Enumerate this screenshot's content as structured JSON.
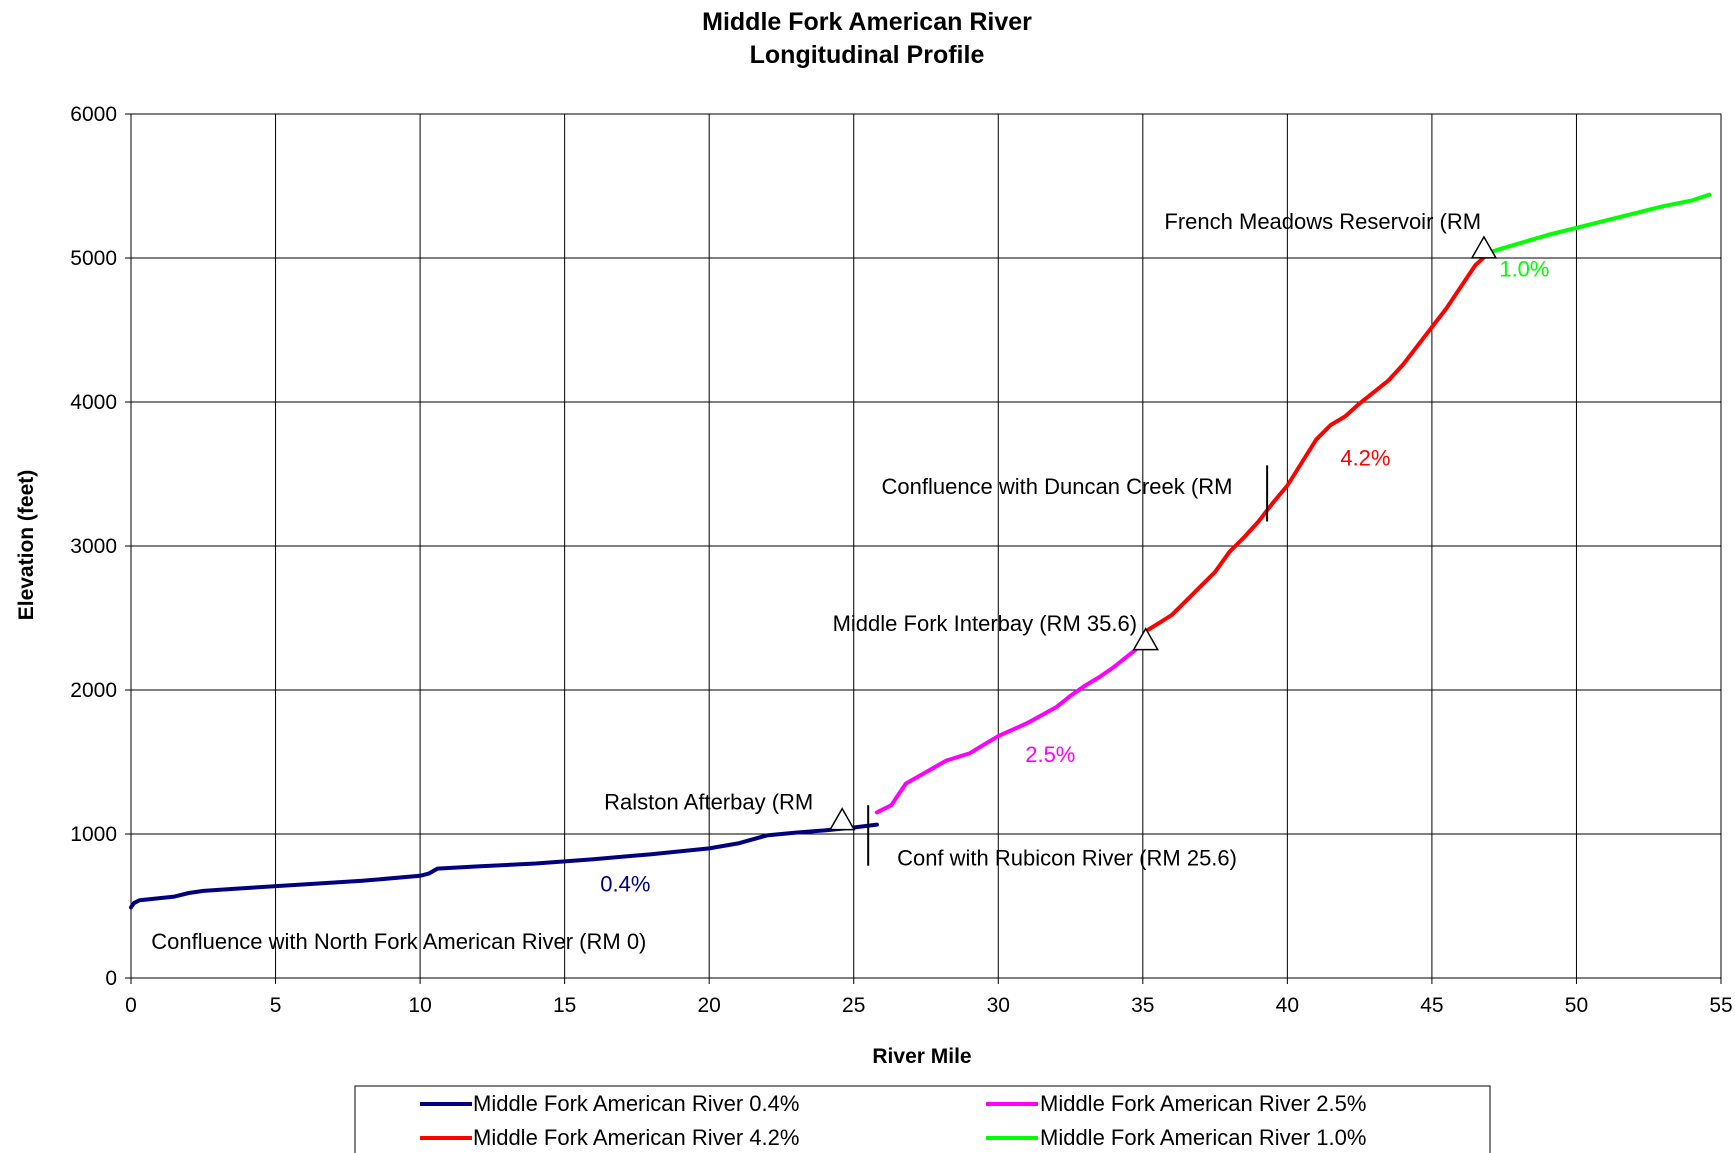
{
  "chart_data": {
    "type": "line",
    "title": [
      "Middle Fork American River",
      "Longitudinal Profile"
    ],
    "xlabel": "River Mile",
    "ylabel": "Elevation (feet)",
    "xlim": [
      0,
      55
    ],
    "ylim": [
      0,
      6000
    ],
    "xticks": [
      "0",
      "5",
      "10",
      "15",
      "20",
      "25",
      "30",
      "35",
      "40",
      "45",
      "50",
      "55"
    ],
    "yticks": [
      "0",
      "1000",
      "2000",
      "3000",
      "4000",
      "5000",
      "6000"
    ],
    "grid": true,
    "legend_position": "bottom",
    "series": [
      {
        "name": "Middle Fork American River 0.4%",
        "color": "#000080",
        "points": [
          [
            0,
            490
          ],
          [
            0.1,
            520
          ],
          [
            0.3,
            540
          ],
          [
            1,
            555
          ],
          [
            1.5,
            565
          ],
          [
            2,
            590
          ],
          [
            2.5,
            605
          ],
          [
            4,
            625
          ],
          [
            6,
            650
          ],
          [
            8,
            675
          ],
          [
            10,
            710
          ],
          [
            10.3,
            725
          ],
          [
            10.6,
            760
          ],
          [
            12,
            775
          ],
          [
            14,
            795
          ],
          [
            16,
            825
          ],
          [
            18,
            860
          ],
          [
            20,
            900
          ],
          [
            21,
            935
          ],
          [
            22,
            990
          ],
          [
            23,
            1010
          ],
          [
            24,
            1025
          ],
          [
            25,
            1045
          ],
          [
            25.8,
            1065
          ]
        ]
      },
      {
        "name": "Middle Fork American River 2.5%",
        "color": "#ff00ff",
        "points": [
          [
            25.8,
            1150
          ],
          [
            26.3,
            1200
          ],
          [
            26.8,
            1350
          ],
          [
            27.5,
            1430
          ],
          [
            28.2,
            1510
          ],
          [
            29,
            1560
          ],
          [
            29.5,
            1620
          ],
          [
            30,
            1680
          ],
          [
            31,
            1770
          ],
          [
            32,
            1880
          ],
          [
            32.5,
            1960
          ],
          [
            33,
            2030
          ],
          [
            33.5,
            2090
          ],
          [
            34,
            2160
          ],
          [
            34.5,
            2240
          ],
          [
            35,
            2320
          ],
          [
            35.2,
            2370
          ]
        ]
      },
      {
        "name": "Middle Fork American River 4.2%",
        "color": "#ff0000",
        "points": [
          [
            35.2,
            2420
          ],
          [
            35.6,
            2470
          ],
          [
            36,
            2520
          ],
          [
            36.5,
            2620
          ],
          [
            37,
            2720
          ],
          [
            37.5,
            2820
          ],
          [
            38,
            2960
          ],
          [
            38.5,
            3060
          ],
          [
            39,
            3170
          ],
          [
            39.5,
            3300
          ],
          [
            40,
            3420
          ],
          [
            40.5,
            3580
          ],
          [
            41,
            3740
          ],
          [
            41.5,
            3840
          ],
          [
            42,
            3900
          ],
          [
            42.5,
            3990
          ],
          [
            43,
            4070
          ],
          [
            43.5,
            4150
          ],
          [
            44,
            4260
          ],
          [
            44.5,
            4390
          ],
          [
            45,
            4520
          ],
          [
            45.5,
            4650
          ],
          [
            46,
            4800
          ],
          [
            46.5,
            4950
          ],
          [
            47,
            5040
          ]
        ]
      },
      {
        "name": "Middle Fork American River 1.0%",
        "color": "#00ff00",
        "points": [
          [
            47,
            5040
          ],
          [
            48,
            5100
          ],
          [
            49,
            5160
          ],
          [
            50,
            5210
          ],
          [
            51,
            5260
          ],
          [
            52,
            5310
          ],
          [
            53,
            5360
          ],
          [
            54,
            5400
          ],
          [
            54.6,
            5440
          ]
        ]
      }
    ],
    "annotations": [
      {
        "text": "Confluence with North Fork American River (RM 0)",
        "x": 0.7,
        "y": 200,
        "anchor": "start",
        "color": "#000000"
      },
      {
        "text": "Ralston Afterbay (RM",
        "x": 23.6,
        "y": 1170,
        "anchor": "end",
        "color": "#000000"
      },
      {
        "text": "Conf with Rubicon River (RM 25.6)",
        "x": 26.5,
        "y": 780,
        "anchor": "start",
        "color": "#000000"
      },
      {
        "text": "Middle Fork Interbay (RM 35.6)",
        "x": 34.8,
        "y": 2410,
        "anchor": "end",
        "color": "#000000"
      },
      {
        "text": "Confluence with Duncan Creek (RM",
        "x": 38.1,
        "y": 3360,
        "anchor": "end",
        "color": "#000000"
      },
      {
        "text": "French Meadows Reservoir (RM",
        "x": 46.7,
        "y": 5200,
        "anchor": "end",
        "color": "#000000"
      },
      {
        "text": "0.4%",
        "x": 17.1,
        "y": 600,
        "anchor": "middle",
        "color": "#000080"
      },
      {
        "text": "2.5%",
        "x": 31.8,
        "y": 1500,
        "anchor": "middle",
        "color": "#ff00ff"
      },
      {
        "text": "4.2%",
        "x": 42.7,
        "y": 3560,
        "anchor": "middle",
        "color": "#ff0000"
      },
      {
        "text": "1.0%",
        "x": 48.2,
        "y": 4870,
        "anchor": "middle",
        "color": "#00ff00"
      }
    ],
    "markers": [
      {
        "shape": "triangle",
        "x": 24.6,
        "y": 1100
      },
      {
        "shape": "triangle",
        "x": 35.1,
        "y": 2350
      },
      {
        "shape": "triangle",
        "x": 46.8,
        "y": 5070
      },
      {
        "shape": "tick",
        "x": 25.5,
        "y": [
          780,
          1200
        ]
      },
      {
        "shape": "tick",
        "x": 39.3,
        "y": [
          3170,
          3560
        ]
      }
    ]
  }
}
